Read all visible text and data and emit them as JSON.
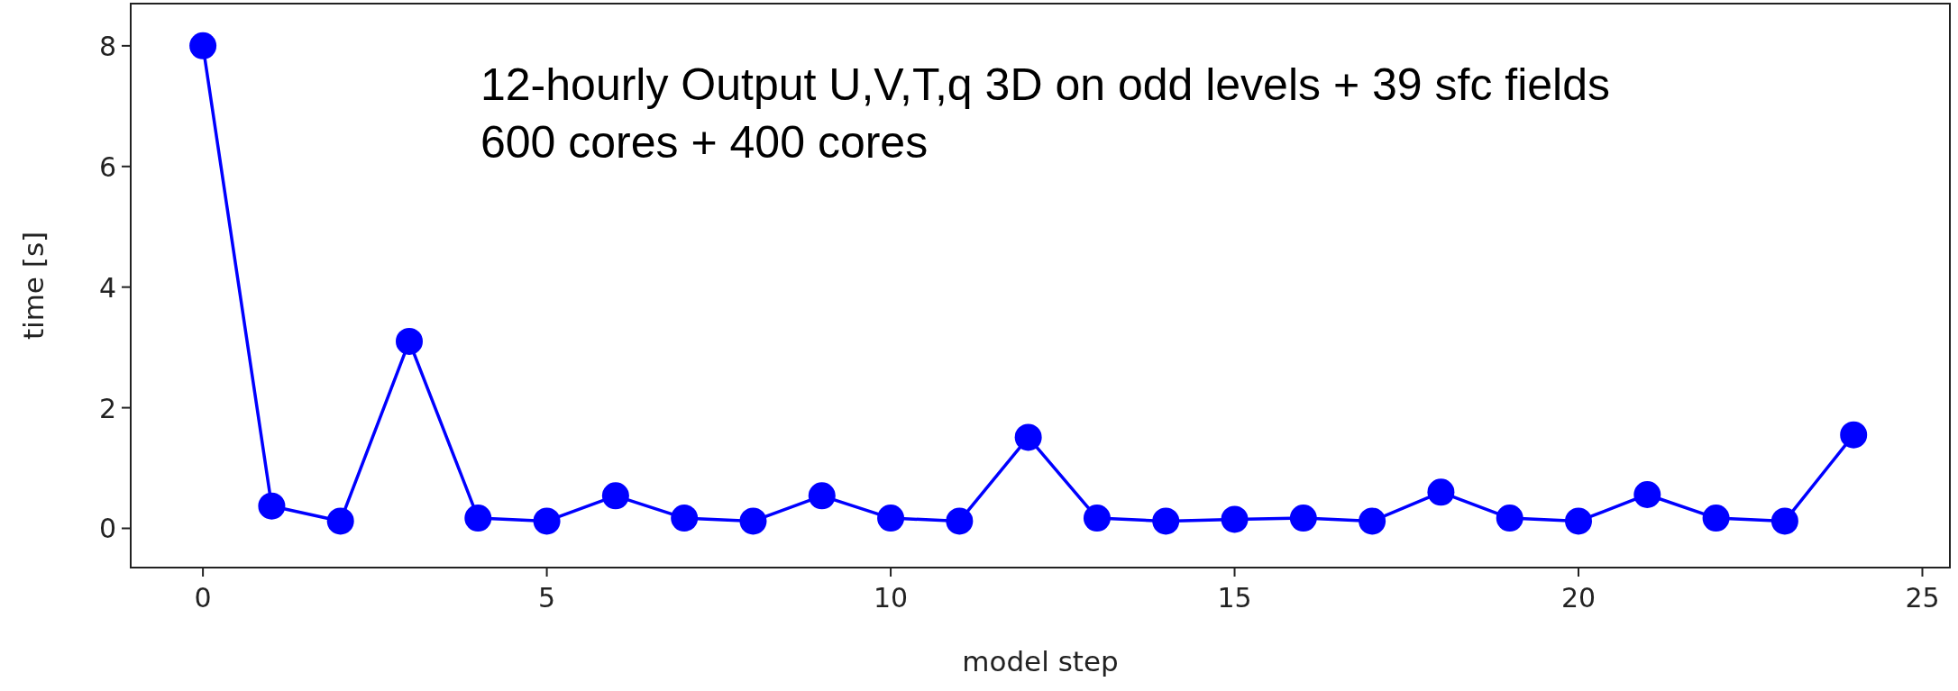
{
  "chart_data": {
    "type": "line",
    "xlabel": "model step",
    "ylabel": "time [s]",
    "x": [
      0,
      1,
      2,
      3,
      4,
      5,
      6,
      7,
      8,
      9,
      10,
      11,
      12,
      13,
      14,
      15,
      16,
      17,
      18,
      19,
      20,
      21,
      22,
      23,
      24
    ],
    "series": [
      {
        "color": "#0000ff",
        "values": [
          8,
          0.37,
          0.12,
          3.1,
          0.17,
          0.12,
          0.54,
          0.17,
          0.12,
          0.54,
          0.17,
          0.12,
          1.51,
          0.17,
          0.12,
          0.15,
          0.17,
          0.12,
          0.6,
          0.17,
          0.12,
          0.56,
          0.17,
          0.12,
          1.55
        ]
      }
    ],
    "xlim": [
      -1.05,
      25.4
    ],
    "ylim": [
      -0.65,
      8.7
    ],
    "xticks": [
      0,
      5,
      10,
      15,
      20,
      25
    ],
    "yticks": [
      0,
      2,
      4,
      6,
      8
    ],
    "marker": "circle",
    "line_style": "solid",
    "annotations": [
      "12-hourly Output U,V,T,q 3D on odd levels + 39 sfc fields",
      "600 cores + 400 cores"
    ]
  }
}
